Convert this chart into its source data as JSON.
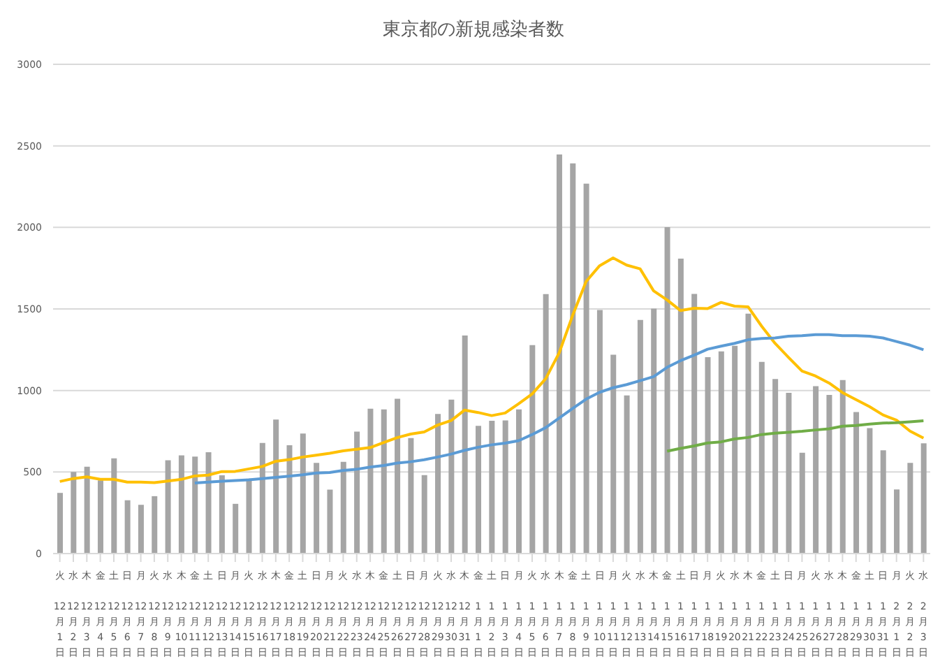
{
  "chart_data": {
    "type": "bar",
    "title": "東京都の新規感染者数",
    "categories": [
      "火\n12月1日",
      "水\n12月2日",
      "木\n12月3日",
      "金\n12月4日",
      "土\n12月5日",
      "日\n12月6日",
      "月\n12月7日",
      "火\n12月8日",
      "水\n12月9日",
      "木\n12月10日",
      "金\n12月11日",
      "土\n12月12日",
      "日\n12月13日",
      "月\n12月14日",
      "火\n12月15日",
      "水\n12月16日",
      "木\n12月17日",
      "金\n12月18日",
      "土\n12月19日",
      "日\n12月20日",
      "月\n12月21日",
      "火\n12月22日",
      "水\n12月23日",
      "木\n12月24日",
      "金\n12月25日",
      "土\n12月26日",
      "日\n12月27日",
      "月\n12月28日",
      "火\n12月29日",
      "水\n12月30日",
      "木\n12月31日",
      "金\n1月1日",
      "土\n1月2日",
      "日\n1月3日",
      "月\n1月4日",
      "火\n1月5日",
      "水\n1月6日",
      "木\n1月7日",
      "金\n1月8日",
      "土\n1月9日",
      "日\n1月10日",
      "月\n1月11日",
      "火\n1月12日",
      "水\n1月13日",
      "木\n1月14日",
      "金\n1月15日",
      "土\n1月16日",
      "日\n1月17日",
      "月\n1月18日",
      "火\n1月19日",
      "水\n1月20日",
      "木\n1月21日",
      "金\n1月22日",
      "土\n1月23日",
      "日\n1月24日",
      "月\n1月25日",
      "火\n1月26日",
      "水\n1月27日",
      "木\n1月28日",
      "金\n1月29日",
      "土\n1月30日",
      "日\n1月31日",
      "月\n2月1日",
      "火\n2月2日",
      "水\n2月3日"
    ],
    "series": [
      {
        "color": "#a5a5a5",
        "values": [
          372,
          500,
          533,
          449,
          584,
          327,
          299,
          352,
          572,
          602,
          595,
          621,
          480,
          305,
          460,
          678,
          822,
          664,
          736,
          556,
          392,
          563,
          748,
          888,
          884,
          949,
          708,
          481,
          856,
          944,
          1337,
          783,
          814,
          816,
          884,
          1278,
          1591,
          2447,
          2392,
          2268,
          1494,
          1219,
          970,
          1433,
          1502,
          2001,
          1809,
          1592,
          1204,
          1240,
          1274,
          1471,
          1175,
          1070,
          986,
          618,
          1026,
          973,
          1064,
          868,
          769,
          633,
          393,
          556,
          676
        ]
      },
      {
        "type": "line",
        "color": "#ffc000",
        "values": [
          442,
          460,
          470,
          455,
          455,
          438,
          438,
          435,
          445,
          455,
          476,
          481,
          503,
          504,
          519,
          534,
          566,
          576,
          592,
          603,
          615,
          630,
          640,
          650,
          681,
          711,
          733,
          746,
          788,
          816,
          880,
          865,
          846,
          862,
          919,
          979,
          1072,
          1230,
          1460,
          1668,
          1765,
          1813,
          1769,
          1746,
          1611,
          1555,
          1490,
          1504,
          1502,
          1540,
          1517,
          1513,
          1395,
          1289,
          1203,
          1119,
          1089,
          1046,
          987,
          944,
          901,
          850,
          818,
          751,
          708
        ]
      },
      {
        "type": "line",
        "color": "#5b9bd5",
        "values": [
          null,
          null,
          null,
          null,
          null,
          null,
          null,
          null,
          null,
          null,
          433,
          438,
          444,
          448,
          452,
          460,
          467,
          475,
          483,
          494,
          497,
          510,
          517,
          530,
          540,
          555,
          563,
          575,
          592,
          610,
          633,
          652,
          667,
          677,
          692,
          730,
          772,
          831,
          890,
          947,
          989,
          1017,
          1036,
          1060,
          1085,
          1142,
          1183,
          1217,
          1253,
          1272,
          1289,
          1311,
          1319,
          1322,
          1333,
          1336,
          1342,
          1342,
          1336,
          1336,
          1333,
          1322,
          1300,
          1278,
          1250
        ]
      },
      {
        "type": "line",
        "color": "#70ad47",
        "values": [
          null,
          null,
          null,
          null,
          null,
          null,
          null,
          null,
          null,
          null,
          null,
          null,
          null,
          null,
          null,
          null,
          null,
          null,
          null,
          null,
          null,
          null,
          null,
          null,
          null,
          null,
          null,
          null,
          null,
          null,
          null,
          null,
          null,
          null,
          null,
          null,
          null,
          null,
          null,
          null,
          null,
          null,
          null,
          null,
          null,
          628,
          645,
          660,
          678,
          685,
          703,
          712,
          730,
          738,
          744,
          750,
          758,
          765,
          781,
          785,
          794,
          800,
          803,
          808,
          814
        ]
      }
    ],
    "ylim": [
      0,
      3000
    ],
    "yticks": [
      0,
      500,
      1000,
      1500,
      2000,
      2500,
      3000
    ],
    "grid": "y",
    "legend": false,
    "marker": "none",
    "line_style": "solid"
  }
}
